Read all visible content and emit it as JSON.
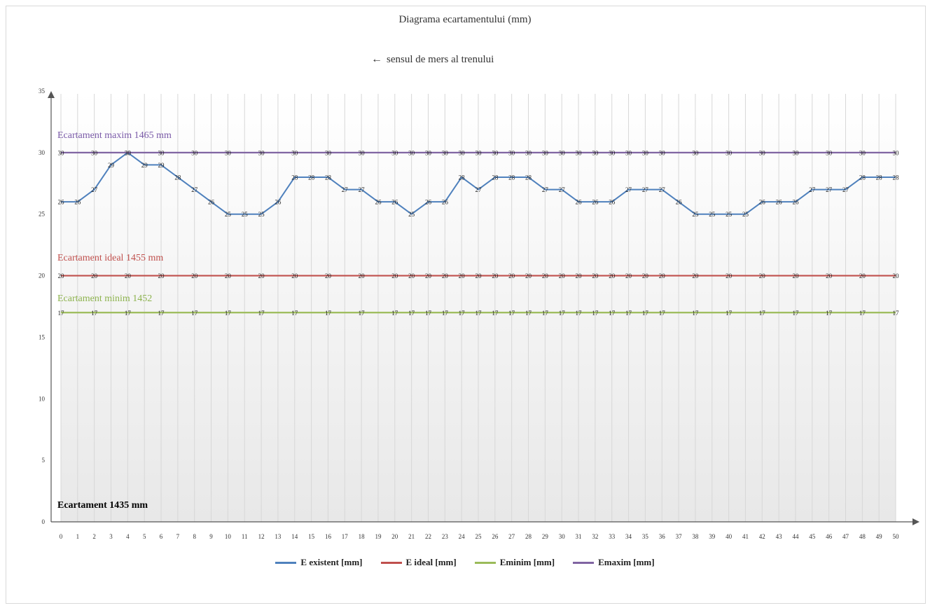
{
  "header": {
    "title": "Diagrama ecartamentului (mm)",
    "direction_arrow": "←",
    "direction_text": "sensul de mers al trenului"
  },
  "annotations": {
    "max": "Ecartament maxim 1465 mm",
    "ideal": "Ecartament ideal 1455 mm",
    "min": "Ecartament minim 1452",
    "base": "Ecartament 1435 mm"
  },
  "colors": {
    "existent": "#4f81bd",
    "ideal": "#c0504d",
    "min": "#9bbb59",
    "max": "#8064a2"
  },
  "chart_data": {
    "type": "line",
    "title": "Diagrama ecartamentului (mm)",
    "xlabel": "",
    "ylabel": "",
    "ylim": [
      0,
      35
    ],
    "yticks": [
      0,
      5,
      10,
      15,
      20,
      25,
      30,
      35
    ],
    "grid": "vertical",
    "legend_position": "bottom",
    "x": [
      0,
      1,
      2,
      3,
      4,
      5,
      6,
      7,
      8,
      9,
      10,
      11,
      12,
      13,
      14,
      15,
      16,
      17,
      18,
      19,
      20,
      21,
      22,
      23,
      24,
      25,
      26,
      27,
      28,
      29,
      30,
      31,
      32,
      33,
      34,
      35,
      36,
      37,
      38,
      39,
      40,
      41,
      42,
      43,
      44,
      45,
      46,
      47,
      48,
      49,
      50
    ],
    "series": [
      {
        "name": "E existent [mm]",
        "color": "#4f81bd",
        "values": [
          26,
          26,
          27,
          29,
          30,
          29,
          29,
          28,
          27,
          26,
          25,
          25,
          25,
          26,
          28,
          28,
          28,
          27,
          27,
          26,
          26,
          25,
          26,
          26,
          28,
          27,
          28,
          28,
          28,
          27,
          27,
          26,
          26,
          26,
          27,
          27,
          27,
          26,
          25,
          25,
          25,
          25,
          26,
          26,
          26,
          27,
          27,
          27,
          28,
          28,
          28
        ]
      },
      {
        "name": "E ideal [mm]",
        "color": "#c0504d",
        "values": [
          20,
          20,
          20,
          20,
          20,
          20,
          20,
          20,
          20,
          20,
          20,
          20,
          20,
          20,
          20,
          20,
          20,
          20,
          20,
          20,
          20,
          20,
          20,
          20,
          20,
          20,
          20,
          20,
          20,
          20,
          20,
          20,
          20,
          20,
          20,
          20,
          20,
          20,
          20,
          20,
          20,
          20,
          20,
          20,
          20,
          20,
          20,
          20,
          20,
          20,
          20
        ]
      },
      {
        "name": "Eminim [mm]",
        "color": "#9bbb59",
        "values": [
          17,
          17,
          17,
          17,
          17,
          17,
          17,
          17,
          17,
          17,
          17,
          17,
          17,
          17,
          17,
          17,
          17,
          17,
          17,
          17,
          17,
          17,
          17,
          17,
          17,
          17,
          17,
          17,
          17,
          17,
          17,
          17,
          17,
          17,
          17,
          17,
          17,
          17,
          17,
          17,
          17,
          17,
          17,
          17,
          17,
          17,
          17,
          17,
          17,
          17,
          17
        ]
      },
      {
        "name": "Emaxim [mm]",
        "color": "#8064a2",
        "values": [
          30,
          30,
          30,
          30,
          30,
          30,
          30,
          30,
          30,
          30,
          30,
          30,
          30,
          30,
          30,
          30,
          30,
          30,
          30,
          30,
          30,
          30,
          30,
          30,
          30,
          30,
          30,
          30,
          30,
          30,
          30,
          30,
          30,
          30,
          30,
          30,
          30,
          30,
          30,
          30,
          30,
          30,
          30,
          30,
          30,
          30,
          30,
          30,
          30,
          30,
          30
        ]
      }
    ],
    "data_label_indices": {
      "E existent [mm]": [
        0,
        1,
        2,
        3,
        4,
        5,
        6,
        7,
        8,
        9,
        10,
        11,
        12,
        13,
        14,
        15,
        16,
        17,
        18,
        19,
        20,
        21,
        22,
        23,
        24,
        25,
        26,
        27,
        28,
        29,
        30,
        31,
        32,
        33,
        34,
        35,
        36,
        37,
        38,
        39,
        40,
        41,
        42,
        43,
        44,
        45,
        46,
        47,
        48,
        49,
        50
      ],
      "E ideal [mm]": [
        0,
        2,
        4,
        6,
        8,
        10,
        12,
        14,
        16,
        18,
        20,
        21,
        22,
        23,
        24,
        25,
        26,
        27,
        28,
        29,
        30,
        31,
        32,
        33,
        34,
        35,
        36,
        38,
        40,
        42,
        44,
        46,
        48,
        50
      ],
      "Eminim [mm]": [
        0,
        2,
        4,
        6,
        8,
        10,
        12,
        14,
        16,
        18,
        20,
        21,
        22,
        23,
        24,
        25,
        26,
        27,
        28,
        29,
        30,
        31,
        32,
        33,
        34,
        35,
        36,
        38,
        40,
        42,
        44,
        46,
        48,
        50
      ],
      "Emaxim [mm]": [
        0,
        2,
        4,
        6,
        8,
        10,
        12,
        14,
        16,
        18,
        20,
        21,
        22,
        23,
        24,
        25,
        26,
        27,
        28,
        29,
        30,
        31,
        32,
        33,
        34,
        35,
        36,
        38,
        40,
        42,
        44,
        46,
        48,
        50
      ]
    }
  }
}
